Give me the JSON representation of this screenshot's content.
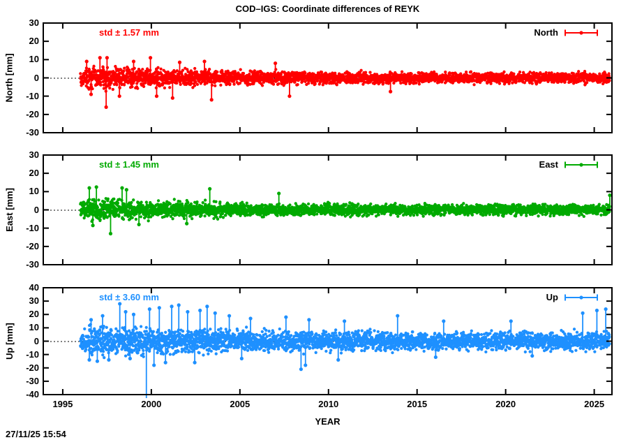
{
  "header": {
    "title": "COD–IGS: Coordinate differences of REYK"
  },
  "footer": {
    "timestamp": "27/11/25 15:54"
  },
  "chart_data": {
    "type": "scatter",
    "title": "COD–IGS: Coordinate differences of REYK",
    "xlabel": "YEAR",
    "xlim": [
      1993.9,
      2026.0
    ],
    "xticks": [
      1995,
      2000,
      2005,
      2010,
      2015,
      2020,
      2025
    ],
    "data_range": [
      1996.0,
      2025.88
    ],
    "grid": false,
    "legend_position": "top-right-inside",
    "zero_line": {
      "style": "dotted",
      "color": "#000000",
      "value": 0
    },
    "panels": [
      {
        "name": "north",
        "ylabel": "North [mm]",
        "legend_label": "North",
        "std_label": "std ± 1.57 mm",
        "std_mm": 1.57,
        "color": "#ff0000",
        "ylim": [
          -30,
          30
        ],
        "yticks": [
          30,
          20,
          10,
          0,
          -10,
          -20,
          -30
        ],
        "points_n": 3000,
        "band": [
          [
            1996,
            5.5
          ],
          [
            1997.5,
            6
          ],
          [
            1999,
            5.5
          ],
          [
            2001,
            4.8
          ],
          [
            2003,
            4.5
          ],
          [
            2005,
            4
          ],
          [
            2008,
            3.6
          ],
          [
            2011,
            3.2
          ],
          [
            2015,
            3
          ],
          [
            2020,
            3
          ],
          [
            2026,
            3
          ]
        ],
        "spikes": [
          [
            1996.35,
            9
          ],
          [
            1996.6,
            -9
          ],
          [
            1997.1,
            11
          ],
          [
            1997.45,
            -16
          ],
          [
            1997.5,
            11
          ],
          [
            1998.2,
            -10
          ],
          [
            1999.0,
            9
          ],
          [
            1999.95,
            11
          ],
          [
            2000.3,
            -10
          ],
          [
            2001.2,
            -11
          ],
          [
            2001.6,
            8.5
          ],
          [
            2003.0,
            9
          ],
          [
            2003.4,
            -12
          ],
          [
            2007.0,
            8
          ],
          [
            2007.8,
            -10
          ],
          [
            2013.5,
            -7.5
          ]
        ]
      },
      {
        "name": "east",
        "ylabel": "East [mm]",
        "legend_label": "East",
        "std_label": "std ± 1.45 mm",
        "std_mm": 1.45,
        "color": "#00aa00",
        "ylim": [
          -30,
          30
        ],
        "yticks": [
          30,
          20,
          10,
          0,
          -10,
          -20,
          -30
        ],
        "points_n": 3000,
        "band": [
          [
            1996,
            6
          ],
          [
            1997.5,
            6
          ],
          [
            1999,
            5
          ],
          [
            2001,
            4.5
          ],
          [
            2003,
            4.2
          ],
          [
            2006,
            3.6
          ],
          [
            2010,
            3.2
          ],
          [
            2015,
            3
          ],
          [
            2020,
            2.9
          ],
          [
            2026,
            2.9
          ]
        ],
        "spikes": [
          [
            1996.5,
            12
          ],
          [
            1996.7,
            -8.5
          ],
          [
            1996.9,
            12.5
          ],
          [
            1997.7,
            -13
          ],
          [
            1998.35,
            12
          ],
          [
            1998.6,
            11
          ],
          [
            1999.3,
            -8
          ],
          [
            2002.0,
            -7.5
          ],
          [
            2003.3,
            11.5
          ],
          [
            2007.2,
            9
          ],
          [
            2025.88,
            8
          ]
        ]
      },
      {
        "name": "up",
        "ylabel": "Up [mm]",
        "legend_label": "Up",
        "std_label": "std ± 3.60 mm",
        "std_mm": 3.6,
        "color": "#1e90ff",
        "ylim": [
          -40,
          40
        ],
        "yticks": [
          40,
          30,
          20,
          10,
          0,
          -10,
          -20,
          -30,
          -40
        ],
        "points_n": 3200,
        "band": [
          [
            1996,
            10
          ],
          [
            1998,
            11
          ],
          [
            2000,
            10
          ],
          [
            2002,
            9.5
          ],
          [
            2004,
            9
          ],
          [
            2006,
            8.5
          ],
          [
            2008,
            8.5
          ],
          [
            2010,
            7.5
          ],
          [
            2013,
            7
          ],
          [
            2016,
            6.8
          ],
          [
            2020,
            6.8
          ],
          [
            2023,
            7
          ],
          [
            2026,
            7.5
          ]
        ],
        "spikes": [
          [
            1996.5,
            -14
          ],
          [
            1996.6,
            16
          ],
          [
            1996.95,
            -15
          ],
          [
            1997.25,
            19
          ],
          [
            1997.6,
            -14
          ],
          [
            1998.22,
            28
          ],
          [
            1998.55,
            22
          ],
          [
            1998.8,
            -13
          ],
          [
            1999.0,
            20
          ],
          [
            1999.72,
            -44
          ],
          [
            1999.9,
            24
          ],
          [
            2000.15,
            -18
          ],
          [
            2000.45,
            25
          ],
          [
            2000.8,
            -16
          ],
          [
            2001.15,
            26
          ],
          [
            2001.55,
            27
          ],
          [
            2002.05,
            22
          ],
          [
            2002.45,
            -16
          ],
          [
            2002.75,
            23
          ],
          [
            2003.15,
            26
          ],
          [
            2003.6,
            21
          ],
          [
            2004.4,
            19
          ],
          [
            2005.1,
            -13
          ],
          [
            2005.6,
            17
          ],
          [
            2007.6,
            18
          ],
          [
            2008.45,
            -21
          ],
          [
            2008.7,
            -18
          ],
          [
            2008.9,
            16
          ],
          [
            2010.55,
            -14
          ],
          [
            2010.9,
            15
          ],
          [
            2013.9,
            19
          ],
          [
            2016.05,
            -12
          ],
          [
            2016.5,
            15
          ],
          [
            2020.3,
            15
          ],
          [
            2021.5,
            -11
          ],
          [
            2024.35,
            21
          ],
          [
            2025.15,
            23
          ],
          [
            2025.65,
            24
          ]
        ]
      }
    ]
  }
}
